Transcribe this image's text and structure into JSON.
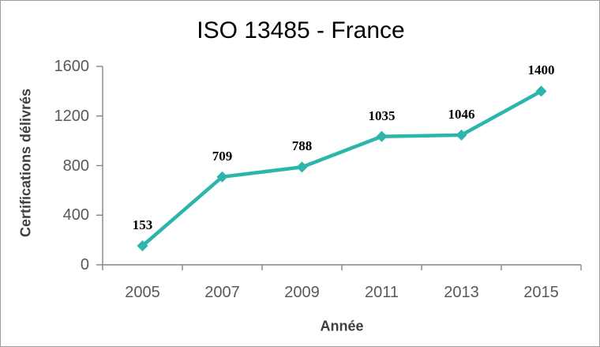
{
  "window": {
    "background_color": "#ffffff",
    "border_color": "#9d9d9d"
  },
  "chart_data": {
    "type": "line",
    "title": "ISO 13485 - France",
    "xlabel": "Année",
    "ylabel": "Certifications délivrés",
    "categories": [
      "2005",
      "2007",
      "2009",
      "2011",
      "2013",
      "2015"
    ],
    "values": [
      153,
      709,
      788,
      1035,
      1046,
      1400
    ],
    "data_labels": [
      "153",
      "709",
      "788",
      "1035",
      "1046",
      "1400"
    ],
    "ylim": [
      0,
      1600
    ],
    "yticks": [
      0,
      400,
      800,
      1200,
      1600
    ],
    "grid": false,
    "legend": false,
    "marker": "diamond",
    "line_color": "#2bb5ab",
    "marker_color": "#2bb5ab",
    "axis_color": "#848484",
    "tick_label_color": "#595959",
    "axis_title_color": "#3f3f3f",
    "title_color": "#000000",
    "data_label_color": "#000000"
  }
}
